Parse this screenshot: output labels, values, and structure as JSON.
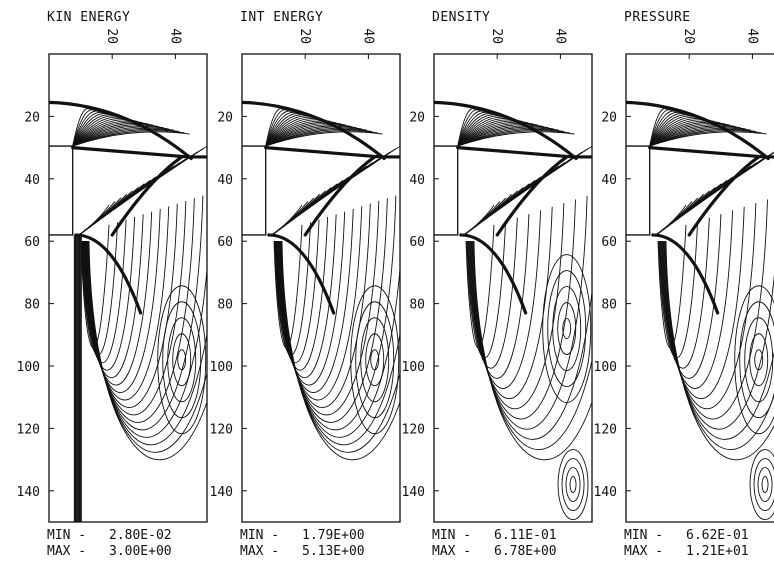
{
  "chart_data": [
    {
      "type": "contour",
      "title": "KIN ENERGY",
      "x_ticks": [
        "20",
        "40"
      ],
      "y_ticks": [
        "20",
        "40",
        "60",
        "80",
        "100",
        "120",
        "140"
      ],
      "xlim": [
        0,
        50
      ],
      "ylim": [
        150,
        0
      ],
      "min_label": "MIN -",
      "min_value": "2.80E-02",
      "max_label": "MAX -",
      "max_value": "3.00E+00"
    },
    {
      "type": "contour",
      "title": "INT ENERGY",
      "x_ticks": [
        "20",
        "40"
      ],
      "y_ticks": [
        "20",
        "40",
        "60",
        "80",
        "100",
        "120",
        "140"
      ],
      "xlim": [
        0,
        50
      ],
      "ylim": [
        150,
        0
      ],
      "min_label": "MIN -",
      "min_value": "1.79E+00",
      "max_label": "MAX -",
      "max_value": "5.13E+00"
    },
    {
      "type": "contour",
      "title": "DENSITY",
      "x_ticks": [
        "20",
        "40"
      ],
      "y_ticks": [
        "20",
        "40",
        "60",
        "80",
        "100",
        "120",
        "140"
      ],
      "xlim": [
        0,
        50
      ],
      "ylim": [
        150,
        0
      ],
      "min_label": "MIN -",
      "min_value": "6.11E-01",
      "max_label": "MAX -",
      "max_value": "6.78E+00"
    },
    {
      "type": "contour",
      "title": "PRESSURE",
      "x_ticks": [
        "20",
        "40"
      ],
      "y_ticks": [
        "20",
        "40",
        "60",
        "80",
        "100",
        "120",
        "140"
      ],
      "xlim": [
        0,
        50
      ],
      "ylim": [
        150,
        0
      ],
      "min_label": "MIN -",
      "min_value": "6.62E-01",
      "max_label": "MAX -",
      "max_value": "1.21E+01"
    }
  ]
}
